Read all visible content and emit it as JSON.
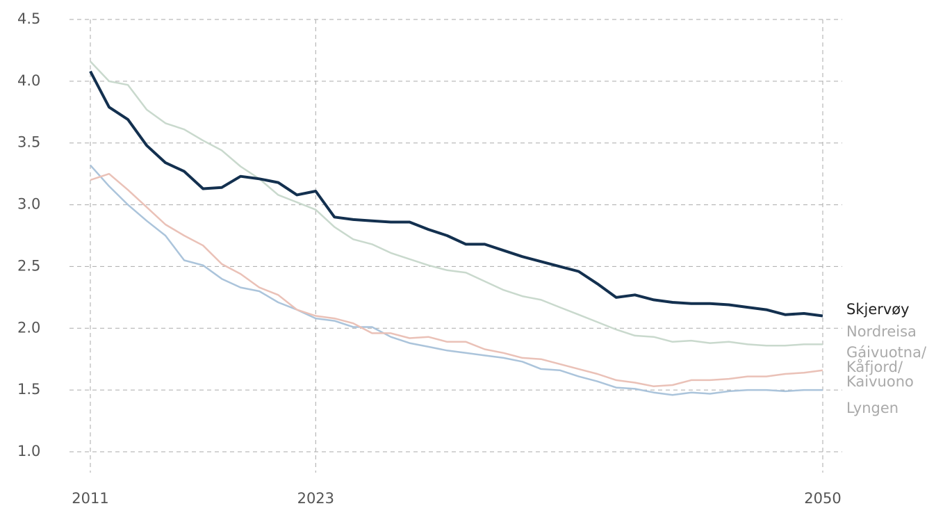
{
  "chart_data": {
    "type": "line",
    "x": [
      2011,
      2012,
      2013,
      2014,
      2015,
      2016,
      2017,
      2018,
      2019,
      2020,
      2021,
      2022,
      2023,
      2024,
      2025,
      2026,
      2027,
      2028,
      2029,
      2030,
      2031,
      2032,
      2033,
      2034,
      2035,
      2036,
      2037,
      2038,
      2039,
      2040,
      2041,
      2042,
      2043,
      2044,
      2045,
      2046,
      2047,
      2048,
      2049,
      2050
    ],
    "series": [
      {
        "name": "Skjervøy",
        "color": "#13304f",
        "values": [
          4.08,
          3.79,
          3.69,
          3.48,
          3.34,
          3.27,
          3.13,
          3.14,
          3.23,
          3.21,
          3.18,
          3.08,
          3.11,
          2.9,
          2.88,
          2.87,
          2.86,
          2.86,
          2.8,
          2.75,
          2.68,
          2.68,
          2.63,
          2.58,
          2.54,
          2.5,
          2.46,
          2.36,
          2.25,
          2.27,
          2.23,
          2.21,
          2.2,
          2.2,
          2.19,
          2.17,
          2.15,
          2.11,
          2.12,
          2.1
        ]
      },
      {
        "name": "Nordreisa",
        "color": "#c9d9cd",
        "values": [
          4.16,
          4.0,
          3.97,
          3.77,
          3.66,
          3.61,
          3.52,
          3.44,
          3.31,
          3.21,
          3.08,
          3.02,
          2.96,
          2.82,
          2.72,
          2.68,
          2.61,
          2.56,
          2.51,
          2.47,
          2.45,
          2.38,
          2.31,
          2.26,
          2.23,
          2.17,
          2.11,
          2.05,
          1.99,
          1.94,
          1.93,
          1.89,
          1.9,
          1.88,
          1.89,
          1.87,
          1.86,
          1.86,
          1.87,
          1.87
        ]
      },
      {
        "name": "Gáivuotna/Kåfjord/Kaivuono",
        "color": "#eac1b7",
        "values": [
          3.2,
          3.25,
          3.12,
          2.98,
          2.84,
          2.75,
          2.67,
          2.52,
          2.44,
          2.33,
          2.27,
          2.15,
          2.1,
          2.08,
          2.04,
          1.96,
          1.96,
          1.92,
          1.93,
          1.89,
          1.89,
          1.83,
          1.8,
          1.76,
          1.75,
          1.71,
          1.67,
          1.63,
          1.58,
          1.56,
          1.53,
          1.54,
          1.58,
          1.58,
          1.59,
          1.61,
          1.61,
          1.63,
          1.64,
          1.66
        ]
      },
      {
        "name": "Lyngen",
        "color": "#abc4db",
        "values": [
          3.32,
          3.15,
          3.0,
          2.87,
          2.75,
          2.55,
          2.51,
          2.4,
          2.33,
          2.3,
          2.21,
          2.15,
          2.08,
          2.06,
          2.01,
          2.01,
          1.93,
          1.88,
          1.85,
          1.82,
          1.8,
          1.78,
          1.76,
          1.73,
          1.67,
          1.66,
          1.61,
          1.57,
          1.52,
          1.51,
          1.48,
          1.46,
          1.48,
          1.47,
          1.49,
          1.5,
          1.5,
          1.49,
          1.5,
          1.5
        ]
      }
    ],
    "xlim": [
      2011,
      2050
    ],
    "xticks": [
      2011,
      2023,
      2050
    ],
    "ylim": [
      1,
      4.5
    ],
    "yticks": [
      {
        "value": 1,
        "label": "1.0"
      },
      1.5,
      {
        "value": 2,
        "label": "2.0"
      },
      2.5,
      {
        "value": 3,
        "label": "3.0"
      },
      3.5,
      {
        "value": 4,
        "label": "4.0"
      },
      4.5
    ],
    "grid": true
  }
}
